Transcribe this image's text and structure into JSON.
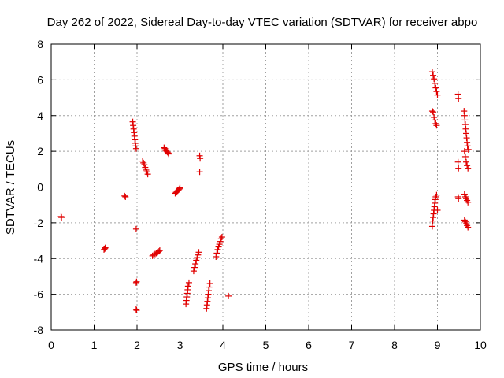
{
  "chart_data": {
    "type": "scatter",
    "title": "Day 262 of 2022, Sidereal Day-to-day VTEC variation (SDTVAR) for receiver abpo",
    "xlabel": "GPS time / hours",
    "ylabel": "SDTVAR / TECUs",
    "xlim": [
      0,
      10
    ],
    "ylim": [
      -8,
      8
    ],
    "xticks": [
      "0",
      "1",
      "2",
      "3",
      "4",
      "5",
      "6",
      "7",
      "8",
      "9",
      "10"
    ],
    "yticks": [
      "-8",
      "-6",
      "-4",
      "-2",
      "0",
      "2",
      "4",
      "6",
      "8"
    ],
    "grid": true,
    "marker": "plus",
    "color": "#e00000",
    "points": [
      [
        0.23,
        -1.65
      ],
      [
        0.24,
        -1.7
      ],
      [
        1.23,
        -3.5
      ],
      [
        1.25,
        -3.45
      ],
      [
        1.26,
        -3.4
      ],
      [
        1.71,
        -0.5
      ],
      [
        1.73,
        -0.55
      ],
      [
        1.9,
        3.65
      ],
      [
        1.91,
        3.45
      ],
      [
        1.92,
        3.25
      ],
      [
        1.93,
        3.05
      ],
      [
        1.94,
        2.85
      ],
      [
        1.95,
        2.65
      ],
      [
        1.96,
        2.45
      ],
      [
        1.97,
        2.3
      ],
      [
        1.98,
        2.15
      ],
      [
        1.98,
        -2.35
      ],
      [
        1.98,
        -5.35
      ],
      [
        1.99,
        -5.3
      ],
      [
        1.98,
        -6.85
      ],
      [
        1.99,
        -6.9
      ],
      [
        2.13,
        1.45
      ],
      [
        2.15,
        1.35
      ],
      [
        2.17,
        1.25
      ],
      [
        2.19,
        1.1
      ],
      [
        2.21,
        0.95
      ],
      [
        2.23,
        0.85
      ],
      [
        2.25,
        0.72
      ],
      [
        2.36,
        -3.85
      ],
      [
        2.39,
        -3.8
      ],
      [
        2.42,
        -3.75
      ],
      [
        2.45,
        -3.7
      ],
      [
        2.48,
        -3.65
      ],
      [
        2.51,
        -3.6
      ],
      [
        2.53,
        -3.55
      ],
      [
        2.63,
        2.2
      ],
      [
        2.65,
        2.15
      ],
      [
        2.67,
        2.05
      ],
      [
        2.69,
        2.0
      ],
      [
        2.71,
        1.95
      ],
      [
        2.73,
        1.9
      ],
      [
        2.74,
        1.85
      ],
      [
        2.89,
        -0.35
      ],
      [
        2.91,
        -0.3
      ],
      [
        2.93,
        -0.25
      ],
      [
        2.95,
        -0.2
      ],
      [
        2.97,
        -0.15
      ],
      [
        2.99,
        -0.1
      ],
      [
        3.0,
        -0.05
      ],
      [
        3.14,
        -6.55
      ],
      [
        3.15,
        -6.35
      ],
      [
        3.16,
        -6.15
      ],
      [
        3.17,
        -5.95
      ],
      [
        3.18,
        -5.75
      ],
      [
        3.19,
        -5.55
      ],
      [
        3.21,
        -5.35
      ],
      [
        3.32,
        -4.7
      ],
      [
        3.34,
        -4.5
      ],
      [
        3.36,
        -4.3
      ],
      [
        3.38,
        -4.1
      ],
      [
        3.4,
        -3.95
      ],
      [
        3.42,
        -3.8
      ],
      [
        3.44,
        -3.65
      ],
      [
        3.46,
        1.75
      ],
      [
        3.47,
        1.6
      ],
      [
        3.46,
        0.85
      ],
      [
        3.62,
        -6.8
      ],
      [
        3.63,
        -6.6
      ],
      [
        3.64,
        -6.4
      ],
      [
        3.65,
        -6.2
      ],
      [
        3.66,
        -6.0
      ],
      [
        3.67,
        -5.8
      ],
      [
        3.68,
        -5.6
      ],
      [
        3.7,
        -5.4
      ],
      [
        3.84,
        -3.9
      ],
      [
        3.86,
        -3.7
      ],
      [
        3.88,
        -3.5
      ],
      [
        3.9,
        -3.35
      ],
      [
        3.92,
        -3.2
      ],
      [
        3.94,
        -3.05
      ],
      [
        3.96,
        -2.9
      ],
      [
        3.98,
        -2.8
      ],
      [
        4.13,
        -6.1
      ],
      [
        8.88,
        6.45
      ],
      [
        8.9,
        6.25
      ],
      [
        8.92,
        6.05
      ],
      [
        8.94,
        5.8
      ],
      [
        8.96,
        5.55
      ],
      [
        8.98,
        5.35
      ],
      [
        9.0,
        5.15
      ],
      [
        8.88,
        4.25
      ],
      [
        8.9,
        4.2
      ],
      [
        8.92,
        3.9
      ],
      [
        8.94,
        3.75
      ],
      [
        8.96,
        3.55
      ],
      [
        8.98,
        3.45
      ],
      [
        8.88,
        -2.2
      ],
      [
        8.89,
        -1.9
      ],
      [
        8.9,
        -1.7
      ],
      [
        8.91,
        -1.5
      ],
      [
        8.92,
        -1.3
      ],
      [
        8.93,
        -1.1
      ],
      [
        8.94,
        -0.9
      ],
      [
        8.95,
        -0.7
      ],
      [
        8.96,
        -0.55
      ],
      [
        8.98,
        -0.45
      ],
      [
        9.0,
        -1.3
      ],
      [
        9.48,
        5.2
      ],
      [
        9.49,
        4.95
      ],
      [
        9.48,
        1.4
      ],
      [
        9.49,
        1.05
      ],
      [
        9.48,
        -0.55
      ],
      [
        9.49,
        -0.65
      ],
      [
        9.62,
        4.25
      ],
      [
        9.63,
        4.0
      ],
      [
        9.64,
        3.75
      ],
      [
        9.65,
        3.5
      ],
      [
        9.66,
        3.25
      ],
      [
        9.67,
        3.0
      ],
      [
        9.68,
        2.75
      ],
      [
        9.69,
        2.5
      ],
      [
        9.7,
        2.3
      ],
      [
        9.72,
        2.1
      ],
      [
        9.63,
        2.0
      ],
      [
        9.65,
        1.7
      ],
      [
        9.67,
        1.4
      ],
      [
        9.69,
        1.2
      ],
      [
        9.71,
        1.05
      ],
      [
        9.63,
        -0.4
      ],
      [
        9.65,
        -0.55
      ],
      [
        9.67,
        -0.65
      ],
      [
        9.69,
        -0.75
      ],
      [
        9.71,
        -0.85
      ],
      [
        9.63,
        -1.85
      ],
      [
        9.65,
        -1.95
      ],
      [
        9.67,
        -2.05
      ],
      [
        9.69,
        -2.15
      ],
      [
        9.71,
        -2.25
      ]
    ]
  }
}
